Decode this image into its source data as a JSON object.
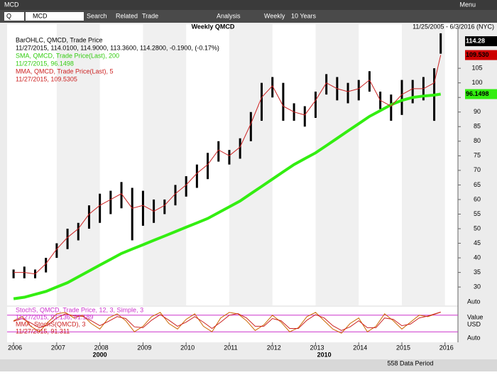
{
  "window": {
    "title": "MCD",
    "menu": "Menu"
  },
  "toolbar": {
    "symbol_type": "Q",
    "symbol": "MCD",
    "items": [
      "Search",
      "Related",
      "Trade",
      "Analysis",
      "Weekly",
      "10 Years"
    ]
  },
  "status": "558 Data Period",
  "chart_data": [
    {
      "type": "range-bar",
      "title": "Weekly QMCD",
      "subtitle": "11/25/2005 - 6/3/2016 (NYC)",
      "annotations": [
        "11/27/2015, 114.0100, 114.9000, 113.3600, 114.2800, -0.1900, (-0.17%)",
        "11/27/2015, 96.1498",
        "11/27/2015, 109.5305"
      ],
      "x": [
        2006.0,
        2006.25,
        2006.5,
        2006.75,
        2007.0,
        2007.25,
        2007.5,
        2007.75,
        2008.0,
        2008.25,
        2008.5,
        2008.75,
        2009.0,
        2009.25,
        2009.5,
        2009.75,
        2010.0,
        2010.25,
        2010.5,
        2010.75,
        2011.0,
        2011.25,
        2011.5,
        2011.75,
        2012.0,
        2012.25,
        2012.5,
        2012.75,
        2013.0,
        2013.25,
        2013.5,
        2013.75,
        2014.0,
        2014.25,
        2014.5,
        2014.75,
        2015.0,
        2015.25,
        2015.5,
        2015.75,
        2015.9
      ],
      "series": [
        {
          "name": "BarOHLC, QMCD, Trade Price",
          "color": "#000000",
          "high": [
            36,
            37,
            36,
            40,
            45,
            50,
            52,
            58,
            62,
            63,
            66,
            64,
            63,
            60,
            60,
            65,
            68,
            72,
            76,
            80,
            77,
            81,
            90,
            100,
            102,
            100,
            93,
            92,
            97,
            103,
            102,
            100,
            101,
            104,
            97,
            96,
            101,
            101,
            102,
            105,
            117
          ],
          "low": [
            33,
            33,
            33,
            35,
            40,
            43,
            46,
            50,
            52,
            55,
            57,
            46,
            51,
            52,
            55,
            58,
            61,
            64,
            67,
            73,
            72,
            74,
            80,
            87,
            95,
            87,
            87,
            85,
            88,
            96,
            94,
            93,
            94,
            97,
            91,
            87,
            89,
            93,
            94,
            87,
            110
          ]
        },
        {
          "name": "SMA, QMCD, Trade Price(Last), 200",
          "color": "#33ee11",
          "values": [
            26,
            26.5,
            27.5,
            28.5,
            30,
            31.5,
            33.5,
            35.5,
            37.5,
            39.5,
            41.5,
            43,
            44.5,
            46,
            47.5,
            49,
            50.5,
            52,
            53.5,
            55.5,
            57.5,
            59.5,
            62,
            64.5,
            67,
            69.5,
            72,
            74,
            76,
            78.5,
            81,
            83.5,
            86,
            88.5,
            90.5,
            92.5,
            94,
            95,
            95.5,
            95.8,
            96.1498
          ]
        },
        {
          "name": "MMA, QMCD, Trade Price(Last), 5",
          "color": "#cc2222",
          "values": [
            35,
            35,
            34.5,
            38,
            43,
            47,
            50,
            55,
            58,
            60,
            62,
            57,
            58,
            56,
            58,
            62,
            65,
            69,
            72,
            77,
            75,
            78,
            86,
            95,
            99,
            92,
            90,
            89,
            94,
            100,
            98,
            97,
            98,
            101,
            94,
            92,
            96,
            98,
            98,
            100,
            109.53
          ]
        }
      ],
      "price_tags": [
        {
          "value": 114.28,
          "label": "114.28",
          "color": "#000000"
        },
        {
          "value": 109.53,
          "label": "109.530",
          "color": "#cc0000"
        },
        {
          "value": 96.1498,
          "label": "96.1498",
          "color": "#33ee11"
        }
      ],
      "xlim": [
        2005.85,
        2016.3
      ],
      "xticks": [
        2006,
        2007,
        2008,
        2009,
        2010,
        2011,
        2012,
        2013,
        2014,
        2015,
        2016
      ],
      "decade_ticks": [
        {
          "value": 2008,
          "label": "2000"
        },
        {
          "value": 2013.2,
          "label": "2010"
        }
      ],
      "ylim": [
        23.7,
        117.7
      ],
      "yticks": [
        30,
        35,
        40,
        45,
        50,
        55,
        60,
        65,
        70,
        75,
        80,
        85,
        90,
        95,
        100,
        105
      ],
      "scale_mode": "Auto"
    },
    {
      "type": "line",
      "annotations": [
        "11/27/2015, 91.136, 91.189",
        "11/27/2015, 91.311"
      ],
      "axis_labels": [
        "Value",
        "USD"
      ],
      "scale_mode": "Auto",
      "x": [
        2006.0,
        2006.2,
        2006.4,
        2006.6,
        2006.8,
        2007.0,
        2007.2,
        2007.4,
        2007.6,
        2007.8,
        2008.0,
        2008.2,
        2008.4,
        2008.6,
        2008.8,
        2009.0,
        2009.2,
        2009.4,
        2009.6,
        2009.8,
        2010.0,
        2010.2,
        2010.4,
        2010.6,
        2010.8,
        2011.0,
        2011.2,
        2011.4,
        2011.6,
        2011.8,
        2012.0,
        2012.2,
        2012.4,
        2012.6,
        2012.8,
        2013.0,
        2013.2,
        2013.4,
        2013.6,
        2013.8,
        2014.0,
        2014.2,
        2014.4,
        2014.6,
        2014.8,
        2015.0,
        2015.2,
        2015.4,
        2015.6,
        2015.9
      ],
      "series": [
        {
          "name": "StochS, QMCD, Trade Price, 12, 3, Simple, 3",
          "color": "#cc6600",
          "values": [
            60,
            75,
            40,
            20,
            55,
            85,
            90,
            70,
            80,
            50,
            30,
            70,
            85,
            60,
            20,
            40,
            75,
            90,
            50,
            30,
            65,
            85,
            40,
            20,
            70,
            90,
            85,
            60,
            25,
            45,
            80,
            55,
            20,
            35,
            75,
            90,
            60,
            30,
            15,
            50,
            70,
            20,
            40,
            85,
            60,
            30,
            55,
            80,
            75,
            91.136
          ]
        },
        {
          "name": "MMA, StochS(QMCD), 3",
          "color": "#cc2222",
          "values": [
            58,
            68,
            52,
            35,
            45,
            70,
            85,
            78,
            76,
            60,
            42,
            58,
            75,
            68,
            38,
            35,
            62,
            82,
            62,
            40,
            55,
            75,
            55,
            32,
            55,
            80,
            86,
            70,
            40,
            40,
            68,
            60,
            32,
            32,
            62,
            82,
            70,
            42,
            25,
            38,
            60,
            35,
            35,
            70,
            65,
            42,
            48,
            70,
            77,
            91.311
          ]
        }
      ],
      "levels": [
        80,
        20
      ],
      "level_color": "#cc33cc",
      "ylim": [
        0,
        100
      ]
    }
  ]
}
